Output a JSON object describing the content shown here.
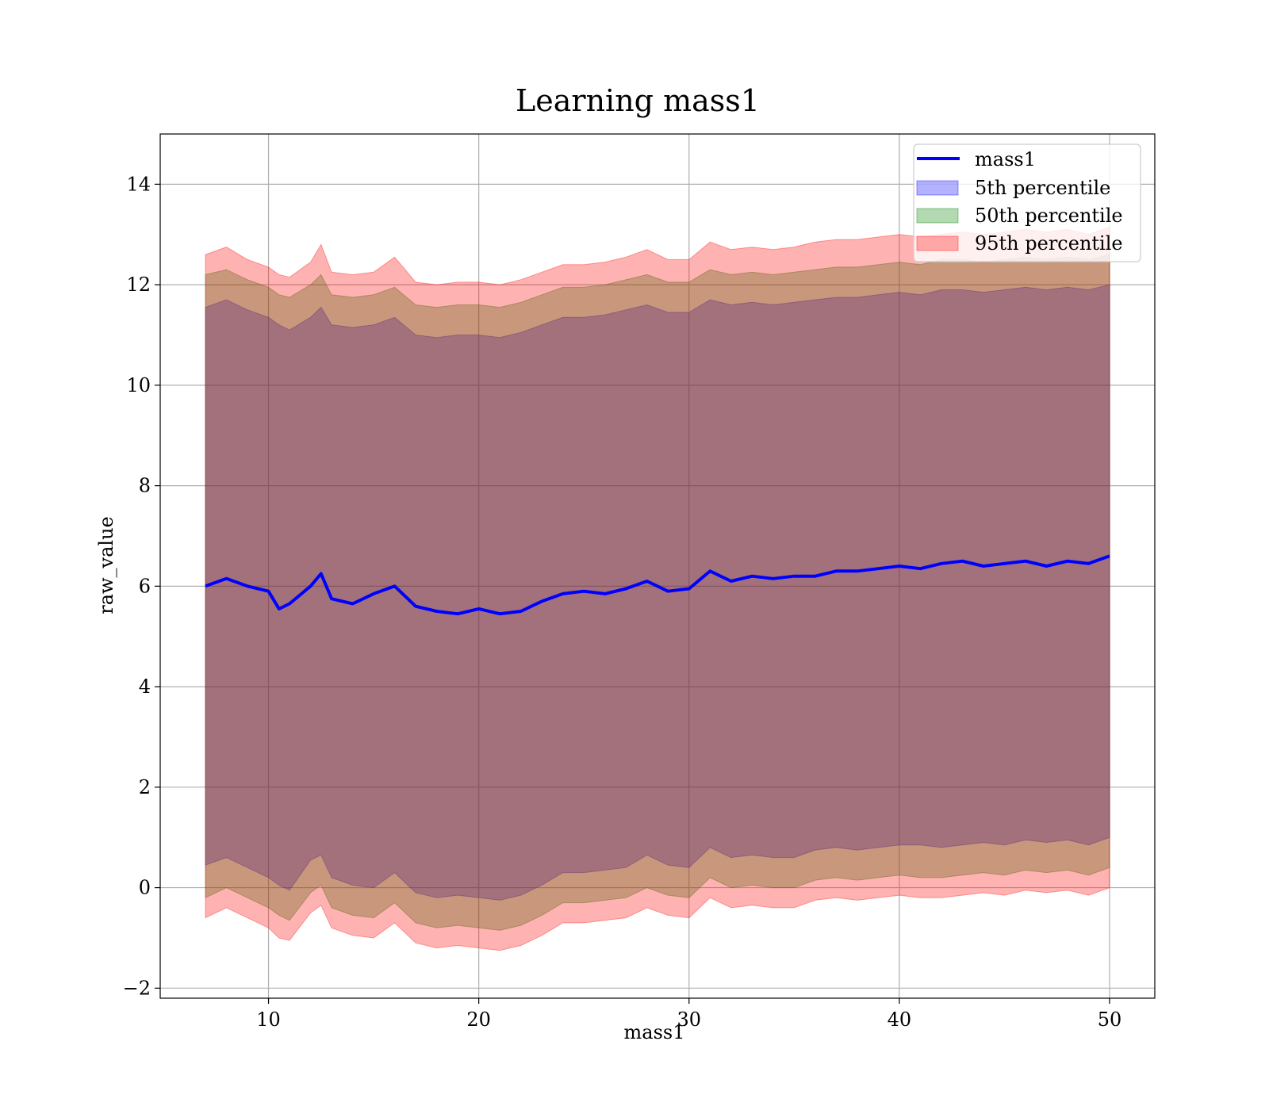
{
  "chart_data": {
    "type": "area",
    "title": "Learning mass1",
    "xlabel": "mass1",
    "ylabel": "raw_value",
    "xlim": [
      4.85,
      52.15
    ],
    "ylim": [
      -2.2,
      15.0
    ],
    "xticks": [
      10,
      20,
      30,
      40,
      50
    ],
    "yticks": [
      -2,
      0,
      2,
      4,
      6,
      8,
      10,
      12,
      14
    ],
    "xtick_labels": [
      "10",
      "20",
      "30",
      "40",
      "50"
    ],
    "ytick_labels": [
      "−2",
      "0",
      "2",
      "4",
      "6",
      "8",
      "10",
      "12",
      "14"
    ],
    "grid": true,
    "legend_position": "top-right",
    "x": [
      7.0,
      8.0,
      9.0,
      10.0,
      10.5,
      11.0,
      12.0,
      12.5,
      13.0,
      14.0,
      15.0,
      16.0,
      17.0,
      18.0,
      19.0,
      20.0,
      21.0,
      22.0,
      23.0,
      24.0,
      25.0,
      26.0,
      27.0,
      28.0,
      29.0,
      30.0,
      31.0,
      32.0,
      33.0,
      34.0,
      35.0,
      36.0,
      37.0,
      38.0,
      39.0,
      40.0,
      41.0,
      42.0,
      43.0,
      44.0,
      45.0,
      46.0,
      47.0,
      48.0,
      49.0,
      50.0
    ],
    "series": [
      {
        "name": "mass1",
        "kind": "line",
        "color": "#0000ff",
        "values": [
          6.0,
          6.15,
          6.0,
          5.9,
          5.55,
          5.65,
          6.0,
          6.25,
          5.75,
          5.65,
          5.85,
          6.0,
          5.6,
          5.5,
          5.45,
          5.55,
          5.45,
          5.5,
          5.7,
          5.85,
          5.9,
          5.85,
          5.95,
          6.1,
          5.9,
          5.95,
          6.3,
          6.1,
          6.2,
          6.15,
          6.2,
          6.2,
          6.3,
          6.3,
          6.35,
          6.4,
          6.35,
          6.45,
          6.5,
          6.4,
          6.45,
          6.5,
          6.4,
          6.5,
          6.45,
          6.6
        ]
      },
      {
        "name": "5th percentile",
        "kind": "band",
        "color": "#0000ff",
        "lower": [
          0.45,
          0.6,
          0.4,
          0.2,
          0.05,
          -0.05,
          0.55,
          0.65,
          0.2,
          0.05,
          0.0,
          0.3,
          -0.1,
          -0.2,
          -0.15,
          -0.2,
          -0.25,
          -0.15,
          0.05,
          0.3,
          0.3,
          0.35,
          0.4,
          0.65,
          0.45,
          0.4,
          0.8,
          0.6,
          0.65,
          0.6,
          0.6,
          0.75,
          0.8,
          0.75,
          0.8,
          0.85,
          0.85,
          0.8,
          0.85,
          0.9,
          0.85,
          0.95,
          0.9,
          0.95,
          0.85,
          1.0
        ],
        "upper": [
          11.55,
          11.7,
          11.5,
          11.35,
          11.2,
          11.1,
          11.35,
          11.55,
          11.2,
          11.15,
          11.2,
          11.35,
          11.0,
          10.95,
          11.0,
          11.0,
          10.95,
          11.05,
          11.2,
          11.35,
          11.35,
          11.4,
          11.5,
          11.6,
          11.45,
          11.45,
          11.7,
          11.6,
          11.65,
          11.6,
          11.65,
          11.7,
          11.75,
          11.75,
          11.8,
          11.85,
          11.8,
          11.9,
          11.9,
          11.85,
          11.9,
          11.95,
          11.9,
          11.95,
          11.9,
          12.0
        ]
      },
      {
        "name": "50th percentile",
        "kind": "band",
        "color": "#008000",
        "lower": [
          -0.2,
          0.0,
          -0.2,
          -0.4,
          -0.55,
          -0.65,
          -0.1,
          0.05,
          -0.4,
          -0.55,
          -0.6,
          -0.3,
          -0.7,
          -0.8,
          -0.75,
          -0.8,
          -0.85,
          -0.75,
          -0.55,
          -0.3,
          -0.3,
          -0.25,
          -0.2,
          0.0,
          -0.15,
          -0.2,
          0.2,
          0.0,
          0.05,
          0.0,
          0.0,
          0.15,
          0.2,
          0.15,
          0.2,
          0.25,
          0.2,
          0.2,
          0.25,
          0.3,
          0.25,
          0.35,
          0.3,
          0.35,
          0.25,
          0.4
        ],
        "upper": [
          12.2,
          12.3,
          12.1,
          11.95,
          11.8,
          11.75,
          12.0,
          12.2,
          11.8,
          11.75,
          11.8,
          11.95,
          11.6,
          11.55,
          11.6,
          11.6,
          11.55,
          11.65,
          11.8,
          11.95,
          11.95,
          12.0,
          12.1,
          12.2,
          12.05,
          12.05,
          12.3,
          12.2,
          12.25,
          12.2,
          12.25,
          12.3,
          12.35,
          12.35,
          12.4,
          12.45,
          12.4,
          12.5,
          12.5,
          12.45,
          12.5,
          12.55,
          12.5,
          12.55,
          12.5,
          12.6
        ]
      },
      {
        "name": "95th percentile",
        "kind": "band",
        "color": "#ff0000",
        "lower": [
          -0.6,
          -0.4,
          -0.6,
          -0.8,
          -1.0,
          -1.05,
          -0.5,
          -0.35,
          -0.8,
          -0.95,
          -1.0,
          -0.7,
          -1.1,
          -1.2,
          -1.15,
          -1.2,
          -1.25,
          -1.15,
          -0.95,
          -0.7,
          -0.7,
          -0.65,
          -0.6,
          -0.4,
          -0.55,
          -0.6,
          -0.2,
          -0.4,
          -0.35,
          -0.4,
          -0.4,
          -0.25,
          -0.2,
          -0.25,
          -0.2,
          -0.15,
          -0.2,
          -0.2,
          -0.15,
          -0.1,
          -0.15,
          -0.05,
          -0.1,
          -0.05,
          -0.15,
          0.0
        ],
        "upper": [
          12.6,
          12.75,
          12.5,
          12.35,
          12.2,
          12.15,
          12.45,
          12.8,
          12.25,
          12.2,
          12.25,
          12.55,
          12.05,
          12.0,
          12.05,
          12.05,
          12.0,
          12.1,
          12.25,
          12.4,
          12.4,
          12.45,
          12.55,
          12.7,
          12.5,
          12.5,
          12.85,
          12.7,
          12.75,
          12.7,
          12.75,
          12.85,
          12.9,
          12.9,
          12.95,
          13.0,
          12.95,
          13.0,
          13.05,
          13.0,
          13.05,
          13.1,
          13.05,
          13.1,
          13.0,
          13.15
        ]
      }
    ]
  }
}
